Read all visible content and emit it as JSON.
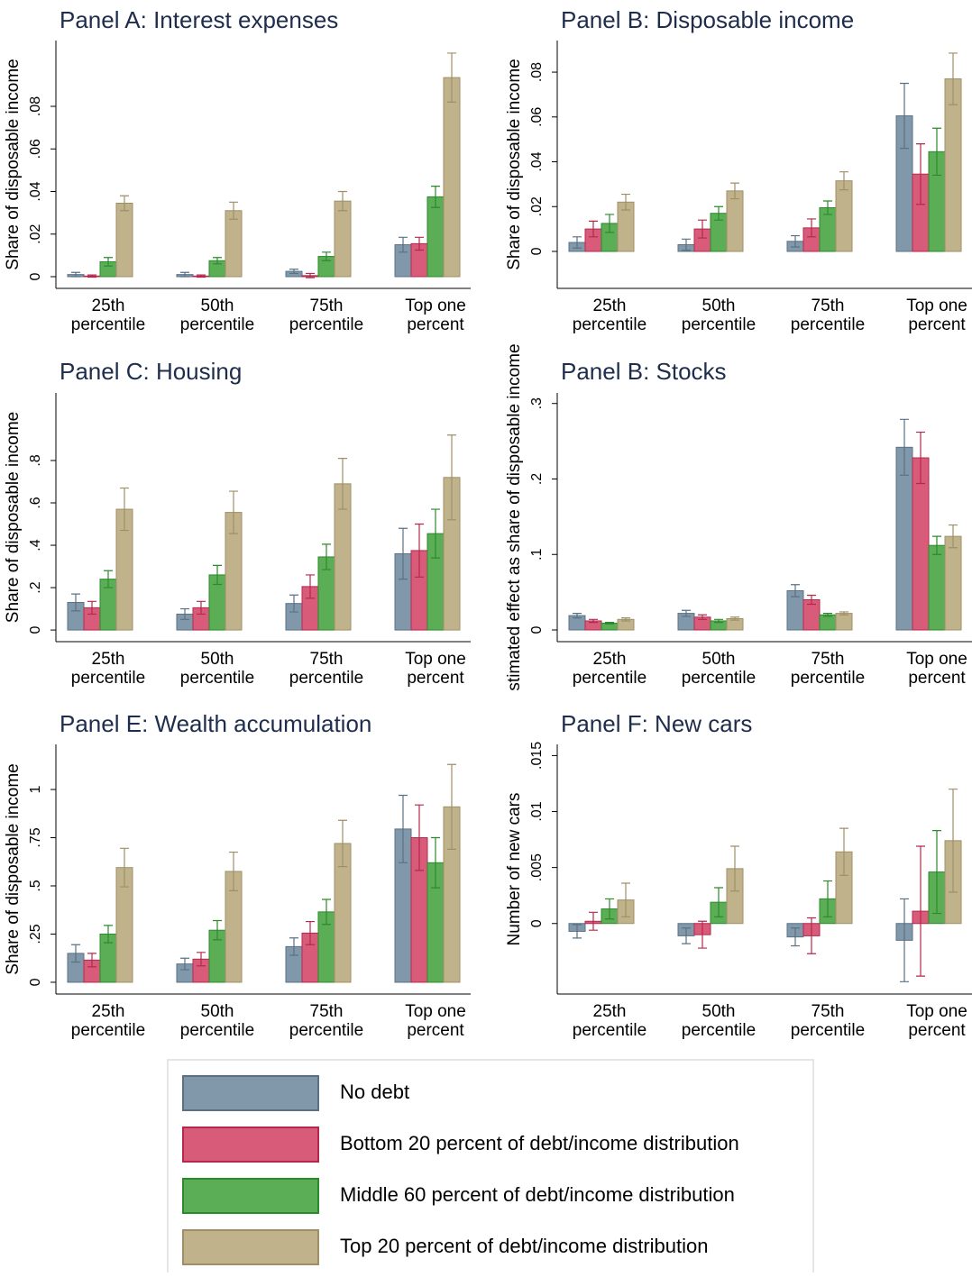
{
  "chart_data": [
    {
      "type": "bar",
      "title": "Panel A: Interest expenses",
      "ylabel": "Share of disposable income",
      "categories": [
        [
          "25th",
          "percentile"
        ],
        [
          "50th",
          "percentile"
        ],
        [
          "75th",
          "percentile"
        ],
        [
          "Top one",
          "percent"
        ]
      ],
      "series": [
        {
          "values": [
            0.001,
            0.001,
            0.0025,
            0.015
          ],
          "errors": [
            0.001,
            0.001,
            0.001,
            0.0035
          ]
        },
        {
          "values": [
            0.0003,
            0.0003,
            0.0005,
            0.0155
          ],
          "errors": [
            0.0005,
            0.0005,
            0.001,
            0.003
          ]
        },
        {
          "values": [
            0.007,
            0.0075,
            0.0095,
            0.0375
          ],
          "errors": [
            0.002,
            0.0015,
            0.002,
            0.005
          ]
        },
        {
          "values": [
            0.0345,
            0.031,
            0.0355,
            0.0935
          ],
          "errors": [
            0.0035,
            0.004,
            0.0045,
            0.0115
          ]
        }
      ],
      "ylim": [
        -0.0055,
        0.1109
      ],
      "yticks": [
        0,
        {
          "value": 0.02,
          "label": ".02"
        },
        {
          "value": 0.04,
          "label": ".04"
        },
        {
          "value": 0.06,
          "label": ".06"
        },
        {
          "value": 0.08,
          "label": ".08"
        }
      ]
    },
    {
      "type": "bar",
      "title": "Panel B: Disposable income",
      "ylabel": "Share of disposable income",
      "categories": [
        [
          "25th",
          "percentile"
        ],
        [
          "50th",
          "percentile"
        ],
        [
          "75th",
          "percentile"
        ],
        [
          "Top one",
          "percent"
        ]
      ],
      "series": [
        {
          "values": [
            0.004,
            0.003,
            0.0045,
            0.0605
          ],
          "errors": [
            0.0025,
            0.0025,
            0.0025,
            0.0145
          ]
        },
        {
          "values": [
            0.01,
            0.01,
            0.0105,
            0.0345
          ],
          "errors": [
            0.0035,
            0.004,
            0.004,
            0.0135
          ]
        },
        {
          "values": [
            0.0125,
            0.017,
            0.0195,
            0.0445
          ],
          "errors": [
            0.004,
            0.003,
            0.003,
            0.0105
          ]
        },
        {
          "values": [
            0.022,
            0.027,
            0.0315,
            0.077
          ],
          "errors": [
            0.0035,
            0.0035,
            0.004,
            0.0115
          ]
        }
      ],
      "ylim": [
        -0.0165,
        0.0941
      ],
      "yticks": [
        0,
        {
          "value": 0.02,
          "label": ".02"
        },
        {
          "value": 0.04,
          "label": ".04"
        },
        {
          "value": 0.06,
          "label": ".06"
        },
        {
          "value": 0.08,
          "label": ".08"
        }
      ]
    },
    {
      "type": "bar",
      "title": "Panel C: Housing",
      "ylabel": "Share of disposable income",
      "categories": [
        [
          "25th",
          "percentile"
        ],
        [
          "50th",
          "percentile"
        ],
        [
          "75th",
          "percentile"
        ],
        [
          "Top one",
          "percent"
        ]
      ],
      "series": [
        {
          "values": [
            0.13,
            0.075,
            0.125,
            0.36
          ],
          "errors": [
            0.04,
            0.025,
            0.04,
            0.12
          ]
        },
        {
          "values": [
            0.105,
            0.105,
            0.205,
            0.375
          ],
          "errors": [
            0.03,
            0.03,
            0.055,
            0.125
          ]
        },
        {
          "values": [
            0.24,
            0.26,
            0.345,
            0.455
          ],
          "errors": [
            0.04,
            0.045,
            0.06,
            0.115
          ]
        },
        {
          "values": [
            0.57,
            0.555,
            0.69,
            0.72
          ],
          "errors": [
            0.1,
            0.1,
            0.12,
            0.2
          ]
        }
      ],
      "ylim": [
        -0.055,
        1.119
      ],
      "yticks": [
        0,
        {
          "value": 0.2,
          "label": ".2"
        },
        {
          "value": 0.4,
          "label": ".4"
        },
        {
          "value": 0.6,
          "label": ".6"
        },
        {
          "value": 0.8,
          "label": ".8"
        }
      ]
    },
    {
      "type": "bar",
      "title": "Panel B: Stocks",
      "ylabel": "stimated effect as share of disposable income",
      "categories": [
        [
          "25th",
          "percentile"
        ],
        [
          "50th",
          "percentile"
        ],
        [
          "75th",
          "percentile"
        ],
        [
          "Top one",
          "percent"
        ]
      ],
      "series": [
        {
          "values": [
            0.019,
            0.022,
            0.052,
            0.242
          ],
          "errors": [
            0.003,
            0.004,
            0.008,
            0.037
          ]
        },
        {
          "values": [
            0.012,
            0.017,
            0.04,
            0.228
          ],
          "errors": [
            0.002,
            0.003,
            0.006,
            0.034
          ]
        },
        {
          "values": [
            0.009,
            0.012,
            0.02,
            0.112
          ],
          "errors": [
            0.001,
            0.002,
            0.002,
            0.012
          ]
        },
        {
          "values": [
            0.014,
            0.015,
            0.022,
            0.124
          ],
          "errors": [
            0.002,
            0.002,
            0.002,
            0.015
          ]
        }
      ],
      "ylim": [
        -0.0155,
        0.314
      ],
      "yticks": [
        0,
        {
          "value": 0.1,
          "label": ".1"
        },
        {
          "value": 0.2,
          "label": ".2"
        },
        {
          "value": 0.3,
          "label": ".3"
        }
      ]
    },
    {
      "type": "bar",
      "title": "Panel E: Wealth accumulation",
      "ylabel": "Share of disposable income",
      "categories": [
        [
          "25th",
          "percentile"
        ],
        [
          "50th",
          "percentile"
        ],
        [
          "75th",
          "percentile"
        ],
        [
          "Top one",
          "percent"
        ]
      ],
      "series": [
        {
          "values": [
            0.15,
            0.095,
            0.185,
            0.795
          ],
          "errors": [
            0.045,
            0.03,
            0.045,
            0.175
          ]
        },
        {
          "values": [
            0.115,
            0.12,
            0.255,
            0.75
          ],
          "errors": [
            0.035,
            0.035,
            0.06,
            0.17
          ]
        },
        {
          "values": [
            0.25,
            0.27,
            0.365,
            0.62
          ],
          "errors": [
            0.045,
            0.05,
            0.065,
            0.13
          ]
        },
        {
          "values": [
            0.595,
            0.575,
            0.72,
            0.91
          ],
          "errors": [
            0.1,
            0.1,
            0.12,
            0.22
          ]
        }
      ],
      "ylim": [
        -0.061,
        1.234
      ],
      "yticks": [
        0,
        {
          "value": 0.25,
          "label": ".25"
        },
        {
          "value": 0.5,
          "label": ".5"
        },
        {
          "value": 0.75,
          "label": ".75"
        },
        1
      ]
    },
    {
      "type": "bar",
      "title": "Panel F: New cars",
      "ylabel": "Number of new cars",
      "categories": [
        [
          "25th",
          "percentile"
        ],
        [
          "50th",
          "percentile"
        ],
        [
          "75th",
          "percentile"
        ],
        [
          "Top one",
          "percent"
        ]
      ],
      "series": [
        {
          "values": [
            -0.0007,
            -0.0011,
            -0.0012,
            -0.0015
          ],
          "errors": [
            0.0006,
            0.0007,
            0.0008,
            0.0037
          ]
        },
        {
          "values": [
            0.0002,
            -0.001,
            -0.0011,
            0.0011
          ],
          "errors": [
            0.0008,
            0.0012,
            0.0016,
            0.0058
          ]
        },
        {
          "values": [
            0.0013,
            0.0019,
            0.0022,
            0.0046
          ],
          "errors": [
            0.0009,
            0.0013,
            0.0016,
            0.0037
          ]
        },
        {
          "values": [
            0.0021,
            0.0049,
            0.0064,
            0.0074
          ],
          "errors": [
            0.0015,
            0.002,
            0.0021,
            0.0046
          ]
        }
      ],
      "ylim": [
        -0.0063,
        0.016
      ],
      "yticks": [
        0,
        {
          "value": 0.005,
          "label": ".005"
        },
        {
          "value": 0.01,
          "label": ".01"
        },
        {
          "value": 0.015,
          "label": ".015"
        }
      ]
    }
  ],
  "legend": [
    {
      "name": "No debt",
      "color": "#8198ab",
      "edgecolor": "#5a7184"
    },
    {
      "name": "Bottom 20 percent of debt/income distribution",
      "color": "#d95b7a",
      "edgecolor": "#b5284c"
    },
    {
      "name": "Middle 60 percent of debt/income distribution",
      "color": "#5cae56",
      "edgecolor": "#2b8a2b"
    },
    {
      "name": "Top 20 percent of debt/income distribution",
      "color": "#c0b38c",
      "edgecolor": "#9f8f66"
    }
  ]
}
